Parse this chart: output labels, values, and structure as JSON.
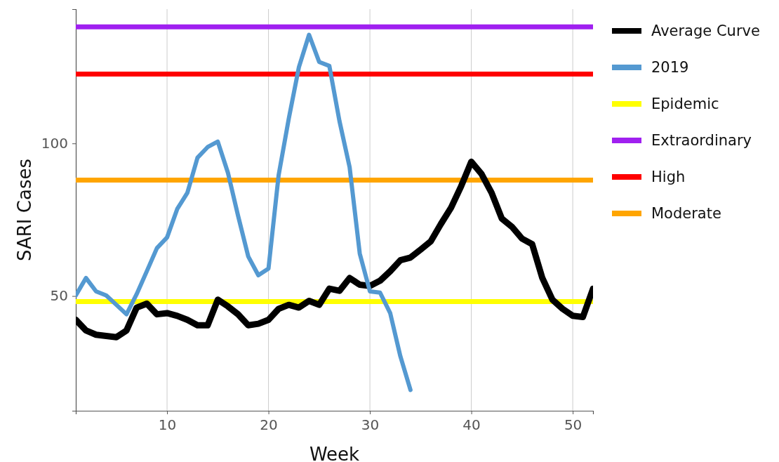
{
  "chart_data": {
    "type": "line",
    "xlabel": "Week",
    "ylabel": "SARI Cases",
    "x": [
      1,
      2,
      3,
      4,
      5,
      6,
      7,
      8,
      9,
      10,
      11,
      12,
      13,
      14,
      15,
      16,
      17,
      18,
      19,
      20,
      21,
      22,
      23,
      24,
      25,
      26,
      27,
      28,
      29,
      30,
      31,
      32,
      33,
      34,
      35,
      36,
      37,
      38,
      39,
      40,
      41,
      42,
      43,
      44,
      45,
      46,
      47,
      48,
      49,
      50,
      51,
      52
    ],
    "series": [
      {
        "name": "Average Curve",
        "color": "#000000",
        "values": [
          42.2,
          38.7,
          37.3,
          36.9,
          36.5,
          38.7,
          46.2,
          47.5,
          44.0,
          44.4,
          43.5,
          42.2,
          40.4,
          40.4,
          48.8,
          46.6,
          44.0,
          40.4,
          40.9,
          42.2,
          45.8,
          47.1,
          46.2,
          48.4,
          47.1,
          52.4,
          51.7,
          55.9,
          53.7,
          53.3,
          55.0,
          58.1,
          61.7,
          62.6,
          65.2,
          67.9,
          73.6,
          78.9,
          86.0,
          94.0,
          90.0,
          83.8,
          75.4,
          72.7,
          68.8,
          67.0,
          55.9,
          48.8,
          45.8,
          43.5,
          43.1,
          52.4
        ]
      },
      {
        "name": "2019",
        "color": "#5499d1",
        "values": [
          50.2,
          55.9,
          51.5,
          50.2,
          47.1,
          44.0,
          50.6,
          58.1,
          65.7,
          69.2,
          78.5,
          83.8,
          95.3,
          98.8,
          100.6,
          90.4,
          76.3,
          63.0,
          56.8,
          59.0,
          89.6,
          108.1,
          125.0,
          135.6,
          126.7,
          125.4,
          107.3,
          92.2,
          63.9,
          51.5,
          51.1,
          44.4,
          30.3,
          19.2,
          null,
          null,
          null,
          null,
          null,
          null,
          null,
          null,
          null,
          null,
          null,
          null,
          null,
          null,
          null,
          null,
          null,
          null
        ]
      }
    ],
    "ref_lines": [
      {
        "axis": "y",
        "value": 48.2,
        "label": "Epidemic",
        "color": "#ffff00"
      },
      {
        "axis": "y",
        "value": 138.2,
        "label": "Extraordinary",
        "color": "#a020f0"
      },
      {
        "axis": "y",
        "value": 122.7,
        "label": "High",
        "color": "#ff0000"
      },
      {
        "axis": "y",
        "value": 88.0,
        "label": "Moderate",
        "color": "#ffa500"
      }
    ],
    "xlim": [
      1,
      52
    ],
    "xticks": [
      10,
      20,
      30,
      40,
      50
    ],
    "ylim": [
      12.4,
      144
    ],
    "yticks": [
      50,
      100
    ],
    "grid": "x",
    "legend": "right",
    "marker": "none",
    "line_style": "solid"
  }
}
